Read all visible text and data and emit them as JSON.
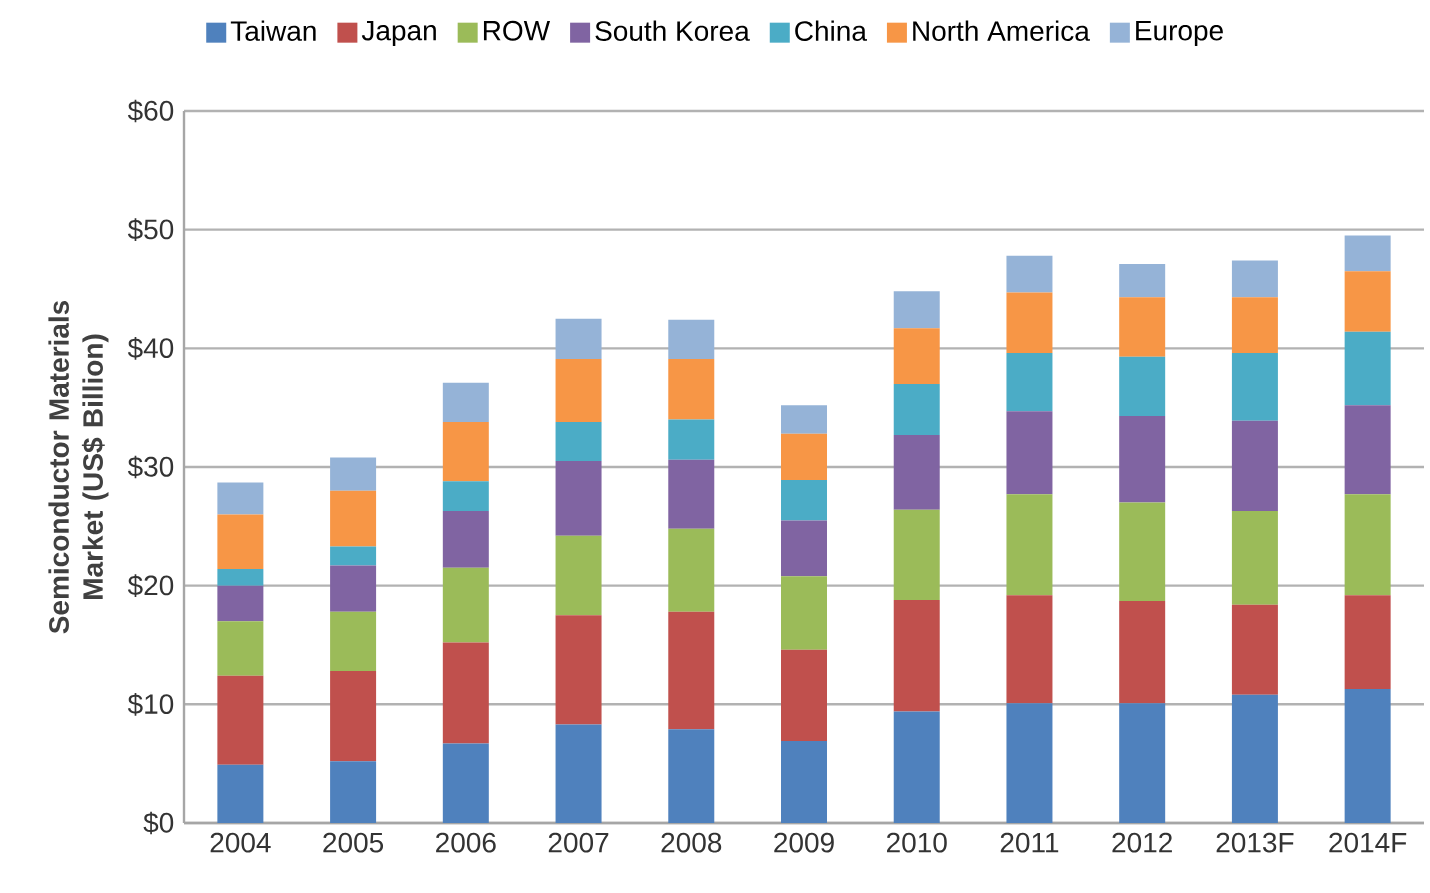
{
  "chart_data": {
    "type": "bar",
    "stacked": true,
    "ylabel": "Semiconductor Materials Market (US$ Billion)",
    "categories": [
      "2004",
      "2005",
      "2006",
      "2007",
      "2008",
      "2009",
      "2010",
      "2011",
      "2012",
      "2013F",
      "2014F"
    ],
    "series": [
      {
        "name": "Taiwan",
        "color": "#4f81bd",
        "values": [
          4.9,
          5.2,
          6.7,
          8.3,
          7.9,
          6.9,
          9.4,
          10.1,
          10.1,
          10.8,
          11.3
        ]
      },
      {
        "name": "Japan",
        "color": "#c0504d",
        "values": [
          7.5,
          7.6,
          8.5,
          9.2,
          9.9,
          7.7,
          9.4,
          9.1,
          8.6,
          7.6,
          7.9
        ]
      },
      {
        "name": "ROW",
        "color": "#9bbb59",
        "values": [
          4.6,
          5.0,
          6.3,
          6.7,
          7.0,
          6.2,
          7.6,
          8.5,
          8.3,
          7.9,
          8.5
        ]
      },
      {
        "name": "South Korea",
        "color": "#8064a2",
        "values": [
          3.0,
          3.9,
          4.8,
          6.3,
          5.8,
          4.7,
          6.3,
          7.0,
          7.3,
          7.6,
          7.5
        ]
      },
      {
        "name": "China",
        "color": "#4bacc6",
        "values": [
          1.4,
          1.6,
          2.5,
          3.3,
          3.4,
          3.4,
          4.3,
          4.9,
          5.0,
          5.7,
          6.2
        ]
      },
      {
        "name": "North America",
        "color": "#f79646",
        "values": [
          4.6,
          4.7,
          5.0,
          5.3,
          5.1,
          3.9,
          4.7,
          5.1,
          5.0,
          4.7,
          5.1
        ]
      },
      {
        "name": "Europe",
        "color": "#95b3d7",
        "values": [
          2.7,
          2.8,
          3.3,
          3.4,
          3.3,
          2.4,
          3.1,
          3.1,
          2.8,
          3.1,
          3.0
        ]
      }
    ],
    "ylim": [
      0,
      60
    ],
    "yticks": [
      {
        "value": 0,
        "label": "$0"
      },
      {
        "value": 10,
        "label": "$10"
      },
      {
        "value": 20,
        "label": "$20"
      },
      {
        "value": 30,
        "label": "$30"
      },
      {
        "value": 40,
        "label": "$40"
      },
      {
        "value": 50,
        "label": "$50"
      },
      {
        "value": 60,
        "label": "$60"
      }
    ],
    "grid": "y",
    "legend": "top"
  }
}
